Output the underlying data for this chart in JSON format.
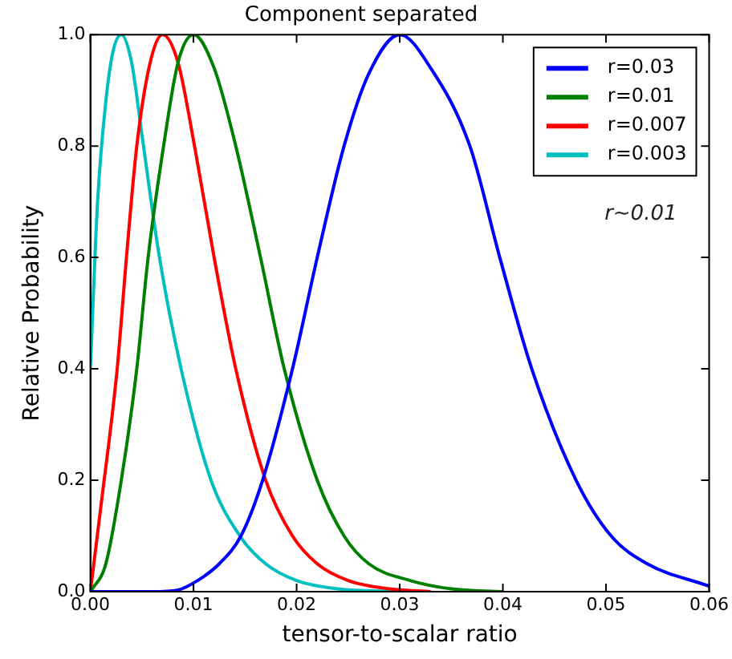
{
  "chart_data": {
    "type": "line",
    "title": "Component separated",
    "xlabel": "tensor-to-scalar ratio",
    "ylabel": "Relative Probability",
    "annotations": [
      "r~0.01"
    ],
    "xlim": [
      0,
      0.06
    ],
    "ylim": [
      0,
      1
    ],
    "xticks": [
      {
        "value": 0,
        "label": "0.00"
      },
      0.01,
      0.02,
      0.03,
      0.04,
      0.05,
      {
        "value": 0.06,
        "label": "0.06"
      }
    ],
    "yticks": [
      {
        "value": 0,
        "label": "0.0"
      },
      0.2,
      0.4,
      0.6,
      0.8,
      {
        "value": 1,
        "label": "1.0"
      }
    ],
    "grid": false,
    "legend": "top right",
    "marker": "none",
    "line_style": "solid",
    "series": [
      {
        "name": "r=0.03",
        "color": "#0000ff",
        "x": [
          0,
          0.006,
          0.0085,
          0.0104,
          0.0125,
          0.0146,
          0.0167,
          0.0196,
          0.022,
          0.0246,
          0.027,
          0.03,
          0.033,
          0.0368,
          0.0397,
          0.0428,
          0.0471,
          0.0505,
          0.054,
          0.06
        ],
        "values": [
          0,
          0,
          0.003,
          0.02,
          0.05,
          0.1,
          0.2,
          0.4,
          0.6,
          0.8,
          0.93,
          1,
          0.94,
          0.8,
          0.6,
          0.4,
          0.2,
          0.1,
          0.05,
          0.01
        ]
      },
      {
        "name": "r=0.01",
        "color": "#008000",
        "x": [
          0,
          0.0015,
          0.003,
          0.0045,
          0.0056,
          0.0071,
          0.0085,
          0.01,
          0.012,
          0.0141,
          0.0165,
          0.0188,
          0.022,
          0.0246,
          0.027,
          0.031,
          0.035,
          0.04
        ],
        "values": [
          0,
          0.05,
          0.2,
          0.4,
          0.6,
          0.8,
          0.95,
          1,
          0.94,
          0.8,
          0.6,
          0.4,
          0.2,
          0.1,
          0.05,
          0.02,
          0.005,
          0
        ]
      },
      {
        "name": "r=0.007",
        "color": "#ff0000",
        "x": [
          0,
          0.001,
          0.0026,
          0.0035,
          0.0045,
          0.0058,
          0.007,
          0.0085,
          0.0101,
          0.012,
          0.0141,
          0.017,
          0.0196,
          0.022,
          0.025,
          0.029,
          0.033
        ],
        "values": [
          0,
          0.15,
          0.4,
          0.6,
          0.8,
          0.95,
          1,
          0.95,
          0.8,
          0.6,
          0.4,
          0.2,
          0.1,
          0.05,
          0.02,
          0.005,
          0
        ]
      },
      {
        "name": "r=0.003",
        "color": "#00bfbf",
        "x": [
          0,
          0.0007,
          0.0015,
          0.0022,
          0.003,
          0.004,
          0.005,
          0.0067,
          0.0088,
          0.0117,
          0.0145,
          0.017,
          0.02,
          0.024,
          0.03
        ],
        "values": [
          0.4,
          0.7,
          0.88,
          0.97,
          1,
          0.95,
          0.82,
          0.6,
          0.4,
          0.2,
          0.1,
          0.05,
          0.02,
          0.005,
          0
        ]
      }
    ]
  }
}
